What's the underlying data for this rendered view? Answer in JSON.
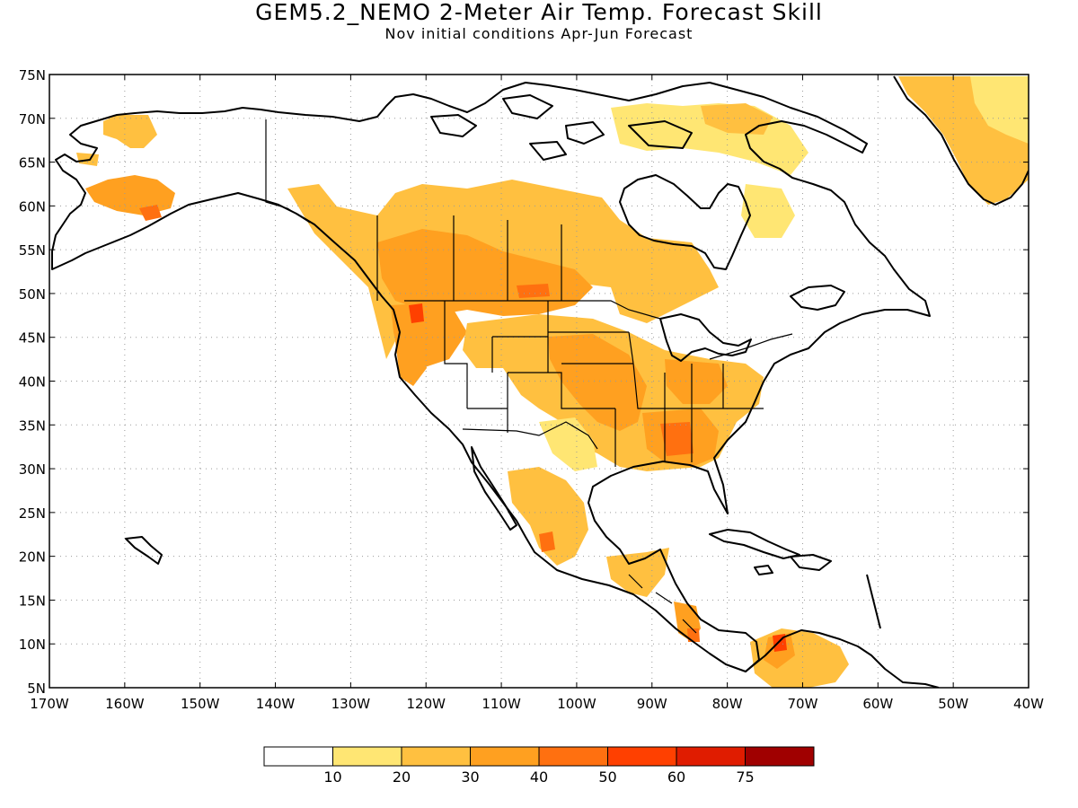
{
  "header": {
    "title": "GEM5.2_NEMO 2-Meter Air Temp. Forecast Skill",
    "subtitle": "Nov initial conditions  Apr-Jun Forecast"
  },
  "map": {
    "lon_range": [
      -170,
      -40
    ],
    "lat_range": [
      5,
      75
    ],
    "lon_ticks": [
      {
        "value": -170,
        "label": "170W"
      },
      {
        "value": -160,
        "label": "160W"
      },
      {
        "value": -150,
        "label": "150W"
      },
      {
        "value": -140,
        "label": "140W"
      },
      {
        "value": -130,
        "label": "130W"
      },
      {
        "value": -120,
        "label": "120W"
      },
      {
        "value": -110,
        "label": "110W"
      },
      {
        "value": -100,
        "label": "100W"
      },
      {
        "value": -90,
        "label": "90W"
      },
      {
        "value": -80,
        "label": "80W"
      },
      {
        "value": -70,
        "label": "70W"
      },
      {
        "value": -60,
        "label": "60W"
      },
      {
        "value": -50,
        "label": "50W"
      },
      {
        "value": -40,
        "label": "40W"
      }
    ],
    "lat_ticks": [
      {
        "value": 75,
        "label": "75N"
      },
      {
        "value": 70,
        "label": "70N"
      },
      {
        "value": 65,
        "label": "65N"
      },
      {
        "value": 60,
        "label": "60N"
      },
      {
        "value": 55,
        "label": "55N"
      },
      {
        "value": 50,
        "label": "50N"
      },
      {
        "value": 45,
        "label": "45N"
      },
      {
        "value": 40,
        "label": "40N"
      },
      {
        "value": 35,
        "label": "35N"
      },
      {
        "value": 30,
        "label": "30N"
      },
      {
        "value": 25,
        "label": "25N"
      },
      {
        "value": 20,
        "label": "20N"
      },
      {
        "value": 15,
        "label": "15N"
      },
      {
        "value": 10,
        "label": "10N"
      },
      {
        "value": 5,
        "label": "5N"
      }
    ],
    "grid": true
  },
  "colorbar": {
    "colors": [
      "#ffffff",
      "#ffe673",
      "#ffc040",
      "#ffa020",
      "#ff7010",
      "#ff4000",
      "#e01c00",
      "#a00000"
    ],
    "labels": [
      "10",
      "20",
      "30",
      "40",
      "50",
      "60",
      "75"
    ]
  }
}
